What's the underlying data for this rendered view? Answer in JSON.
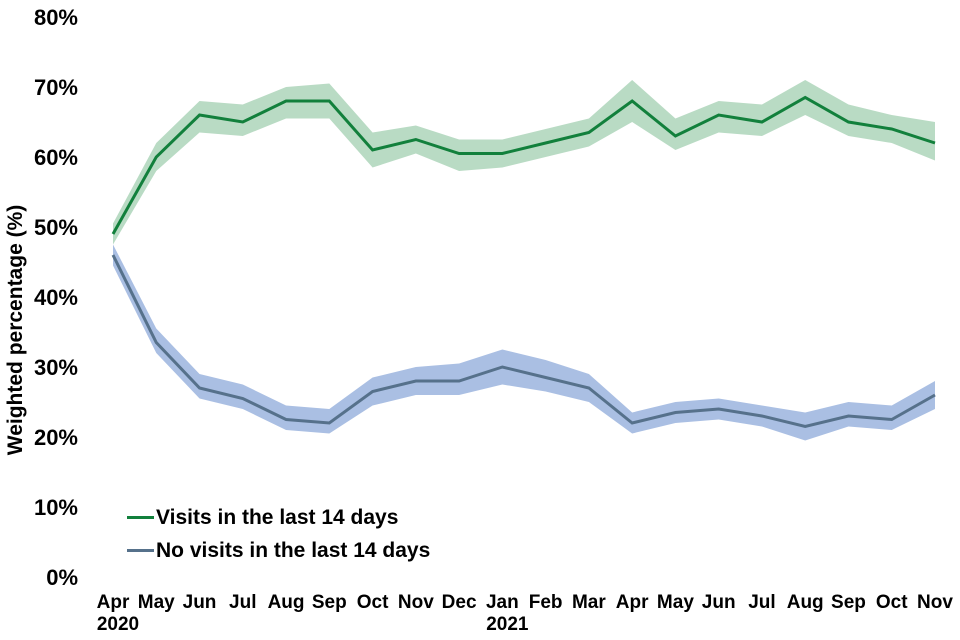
{
  "chart_data": {
    "type": "line",
    "title": "",
    "xlabel": "",
    "ylabel": "Weighted percentage (%)",
    "ylim": [
      0,
      80
    ],
    "grid": false,
    "legend_position": "inside-bottom-left",
    "y_ticks": [
      {
        "value": 80,
        "label": "80%"
      },
      {
        "value": 70,
        "label": "70%"
      },
      {
        "value": 60,
        "label": "60%"
      },
      {
        "value": 50,
        "label": "50%"
      },
      {
        "value": 40,
        "label": "40%"
      },
      {
        "value": 30,
        "label": "30%"
      },
      {
        "value": 20,
        "label": "20%"
      },
      {
        "value": 10,
        "label": "10%"
      },
      {
        "value": 0,
        "label": "0%"
      }
    ],
    "x_categories": [
      "Apr",
      "May",
      "Jun",
      "Jul",
      "Aug",
      "Sep",
      "Oct",
      "Nov",
      "Dec",
      "Jan",
      "Feb",
      "Mar",
      "Apr",
      "May",
      "Jun",
      "Jul",
      "Aug",
      "Sep",
      "Oct",
      "Nov"
    ],
    "x_year_labels": [
      {
        "index": 0,
        "label": "2020"
      },
      {
        "index": 9,
        "label": "2021"
      }
    ],
    "series": [
      {
        "name": "Visits in the last 14 days",
        "color": "#12803c",
        "band_color": "#b9dbc4",
        "values": [
          49,
          60,
          66,
          65,
          68,
          68,
          61,
          62.5,
          60.5,
          60.5,
          62,
          63.5,
          68,
          63,
          66,
          65,
          68.5,
          65,
          64,
          62
        ],
        "ci_upper": [
          50.5,
          62,
          68,
          67.5,
          70,
          70.5,
          63.5,
          64.5,
          62.5,
          62.5,
          64,
          65.5,
          71,
          65.5,
          68,
          67.5,
          71,
          67.5,
          66,
          65
        ],
        "ci_lower": [
          47.5,
          58,
          63.5,
          63,
          65.5,
          65.5,
          58.5,
          60.5,
          58,
          58.5,
          60,
          61.5,
          65,
          61,
          63.5,
          63,
          66,
          63,
          62,
          59.5
        ]
      },
      {
        "name": "No visits in the last 14 days",
        "color": "#56718b",
        "band_color": "#aabfe3",
        "values": [
          46,
          33.5,
          27,
          25.5,
          22.5,
          22,
          26.5,
          28,
          28,
          30,
          28.5,
          27,
          22,
          23.5,
          24,
          23,
          21.5,
          23,
          22.5,
          26
        ],
        "ci_upper": [
          47.5,
          35.5,
          29,
          27.5,
          24.5,
          24,
          28.5,
          30,
          30.5,
          32.5,
          31,
          29,
          23.5,
          25,
          25.5,
          24.5,
          23.5,
          25,
          24.5,
          28
        ],
        "ci_lower": [
          44.5,
          32,
          25.5,
          24,
          21,
          20.5,
          24.5,
          26,
          26,
          27.5,
          26.5,
          25,
          20.5,
          22,
          22.5,
          21.5,
          19.5,
          21.5,
          21,
          24
        ]
      }
    ]
  }
}
